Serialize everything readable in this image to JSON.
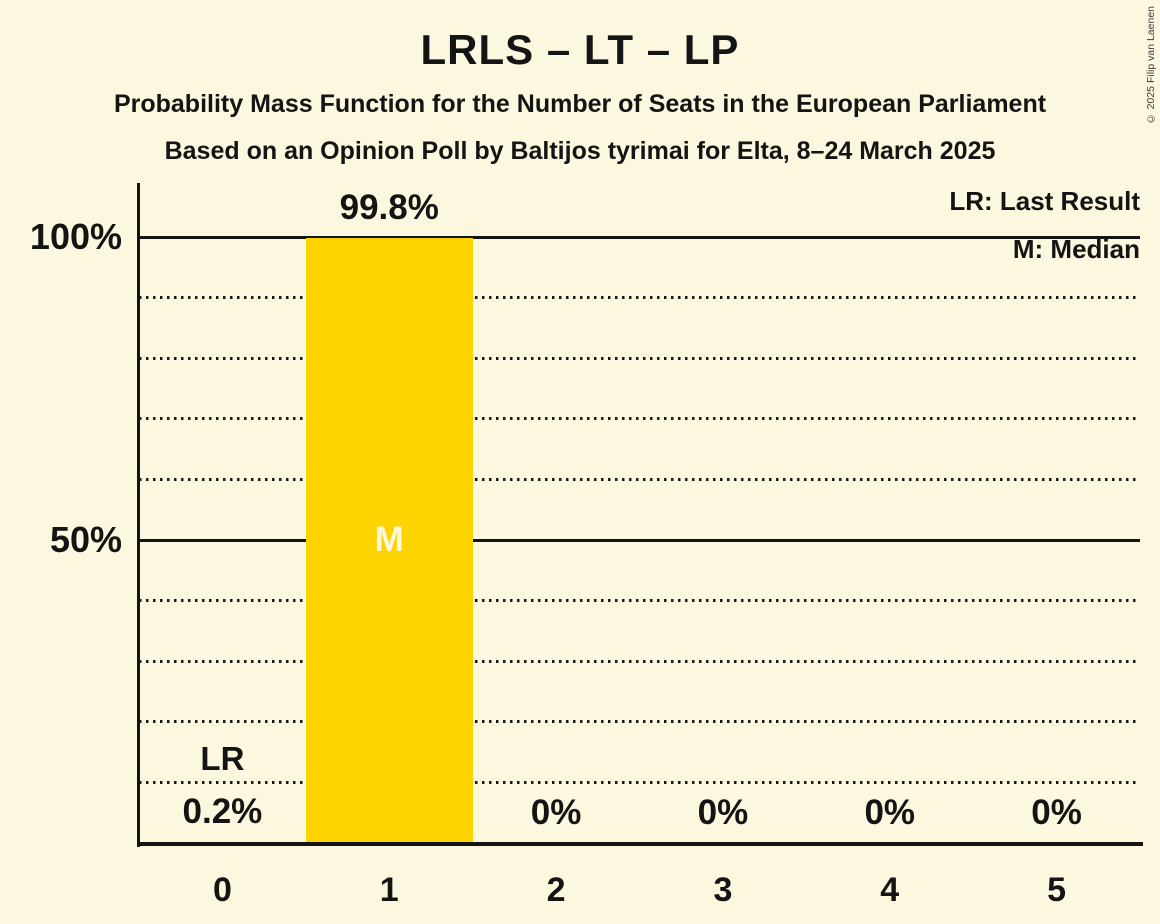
{
  "page": {
    "title": "LRLS – LT – LP",
    "subtitle": "Probability Mass Function for the Number of Seats in the European Parliament",
    "poll_info": "Based on an Opinion Poll by Baltijos tyrimai for Elta, 8–24 March 2025",
    "copyright": "© 2025 Filip van Laenen"
  },
  "legend": {
    "last_result": "LR: Last Result",
    "median": "M: Median"
  },
  "colors": {
    "background": "#FCF7DF",
    "bar": "#FDD400",
    "text": "#141414",
    "median_label_text": "#FCF7DF"
  },
  "chart_data": {
    "type": "bar",
    "title": "LRLS – LT – LP",
    "categories": [
      "0",
      "1",
      "2",
      "3",
      "4",
      "5"
    ],
    "values": [
      0.2,
      99.8,
      0,
      0,
      0,
      0
    ],
    "bar_labels": [
      "0.2%",
      "99.8%",
      "0%",
      "0%",
      "0%",
      "0%"
    ],
    "ylim": [
      0,
      100
    ],
    "yticks": [
      {
        "value": 100,
        "label": "100%"
      },
      {
        "value": 50,
        "label": "50%"
      }
    ],
    "grid": {
      "dotted_percents": [
        10,
        20,
        30,
        40,
        60,
        70,
        80,
        90
      ],
      "solid_percents": [
        50,
        100
      ]
    },
    "legend_position": "top-right",
    "annotations": [
      {
        "category": "0",
        "label": "LR",
        "meaning": "Last Result"
      },
      {
        "category": "1",
        "label": "M",
        "meaning": "Median"
      }
    ]
  }
}
